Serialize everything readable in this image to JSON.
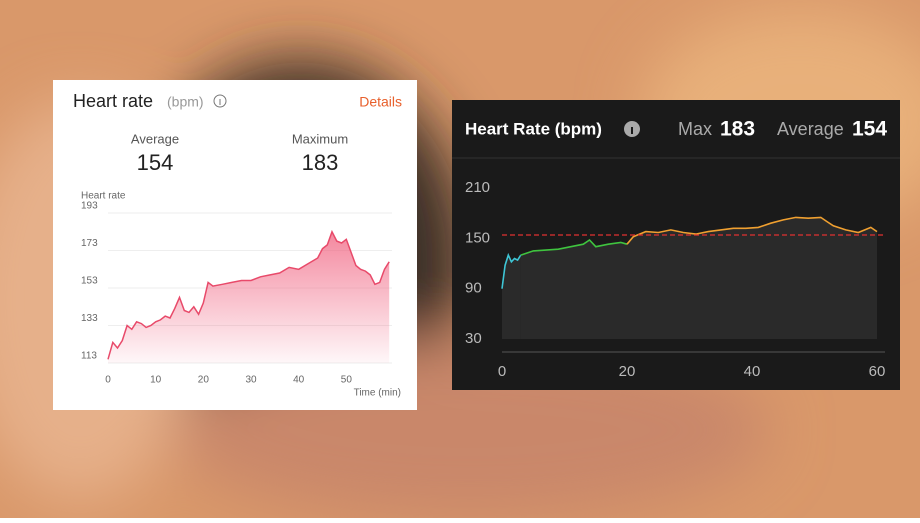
{
  "chart_data": [
    {
      "type": "area",
      "title": "Heart rate",
      "unit": "(bpm)",
      "link": "Details",
      "stats": [
        {
          "label": "Average",
          "value": 154
        },
        {
          "label": "Maximum",
          "value": 183
        }
      ],
      "y_label": "Heart rate",
      "x_label": "Time (min)",
      "xlim": [
        0,
        60
      ],
      "xticks": [
        0,
        10,
        20,
        30,
        40,
        50
      ],
      "ylim": [
        113,
        193
      ],
      "yticks": [
        113,
        133,
        153,
        173,
        193
      ],
      "grid": true,
      "series": [
        {
          "color": "#e84a6a",
          "x": [
            0,
            1,
            2,
            3,
            4,
            5,
            6,
            7,
            8,
            9,
            10,
            11,
            12,
            13,
            14,
            15,
            16,
            17,
            18,
            19,
            20,
            21,
            22,
            24,
            26,
            28,
            30,
            32,
            34,
            36,
            38,
            40,
            42,
            44,
            45,
            46,
            47,
            48,
            49,
            50,
            51,
            52,
            53,
            54,
            55,
            56,
            57,
            58,
            59
          ],
          "values": [
            115,
            124,
            121,
            125,
            133,
            131,
            135,
            134,
            132,
            133,
            135,
            136,
            138,
            137,
            142,
            148,
            141,
            140,
            143,
            139,
            145,
            156,
            154,
            155,
            156,
            157,
            157,
            159,
            160,
            161,
            164,
            163,
            166,
            169,
            174,
            176,
            183,
            178,
            177,
            179,
            172,
            165,
            163,
            162,
            160,
            155,
            156,
            163,
            167
          ]
        }
      ]
    },
    {
      "type": "line",
      "title": "Heart Rate (bpm)",
      "stats": [
        {
          "label": "Max",
          "value": 183
        },
        {
          "label": "Average",
          "value": 154
        }
      ],
      "reference_line_color": "#e03030",
      "xlim": [
        0,
        60
      ],
      "xticks": [
        0,
        20,
        40,
        60
      ],
      "ylim": [
        30,
        210
      ],
      "yticks": [
        30,
        90,
        150,
        210
      ],
      "grid": false,
      "series": [
        {
          "color": "#3ec6d6",
          "x": [
            0,
            0.5,
            1,
            1.5,
            2,
            2.5,
            3
          ],
          "values": [
            90,
            118,
            130,
            122,
            126,
            124,
            130
          ]
        },
        {
          "color": "#3fc43f",
          "x": [
            3,
            5,
            7,
            9,
            11,
            13,
            14,
            15,
            17,
            19,
            20
          ],
          "values": [
            130,
            135,
            136,
            137,
            140,
            143,
            148,
            140,
            143,
            145,
            143
          ]
        },
        {
          "color": "#f0a030",
          "x": [
            20,
            21,
            23,
            25,
            27,
            29,
            31,
            33,
            35,
            37,
            39,
            41,
            43,
            45,
            47,
            49,
            51,
            52,
            53,
            55,
            57,
            59,
            60
          ],
          "values": [
            143,
            152,
            158,
            157,
            160,
            157,
            155,
            158,
            160,
            162,
            162,
            163,
            168,
            172,
            175,
            174,
            175,
            170,
            165,
            160,
            157,
            163,
            158
          ]
        }
      ]
    }
  ]
}
